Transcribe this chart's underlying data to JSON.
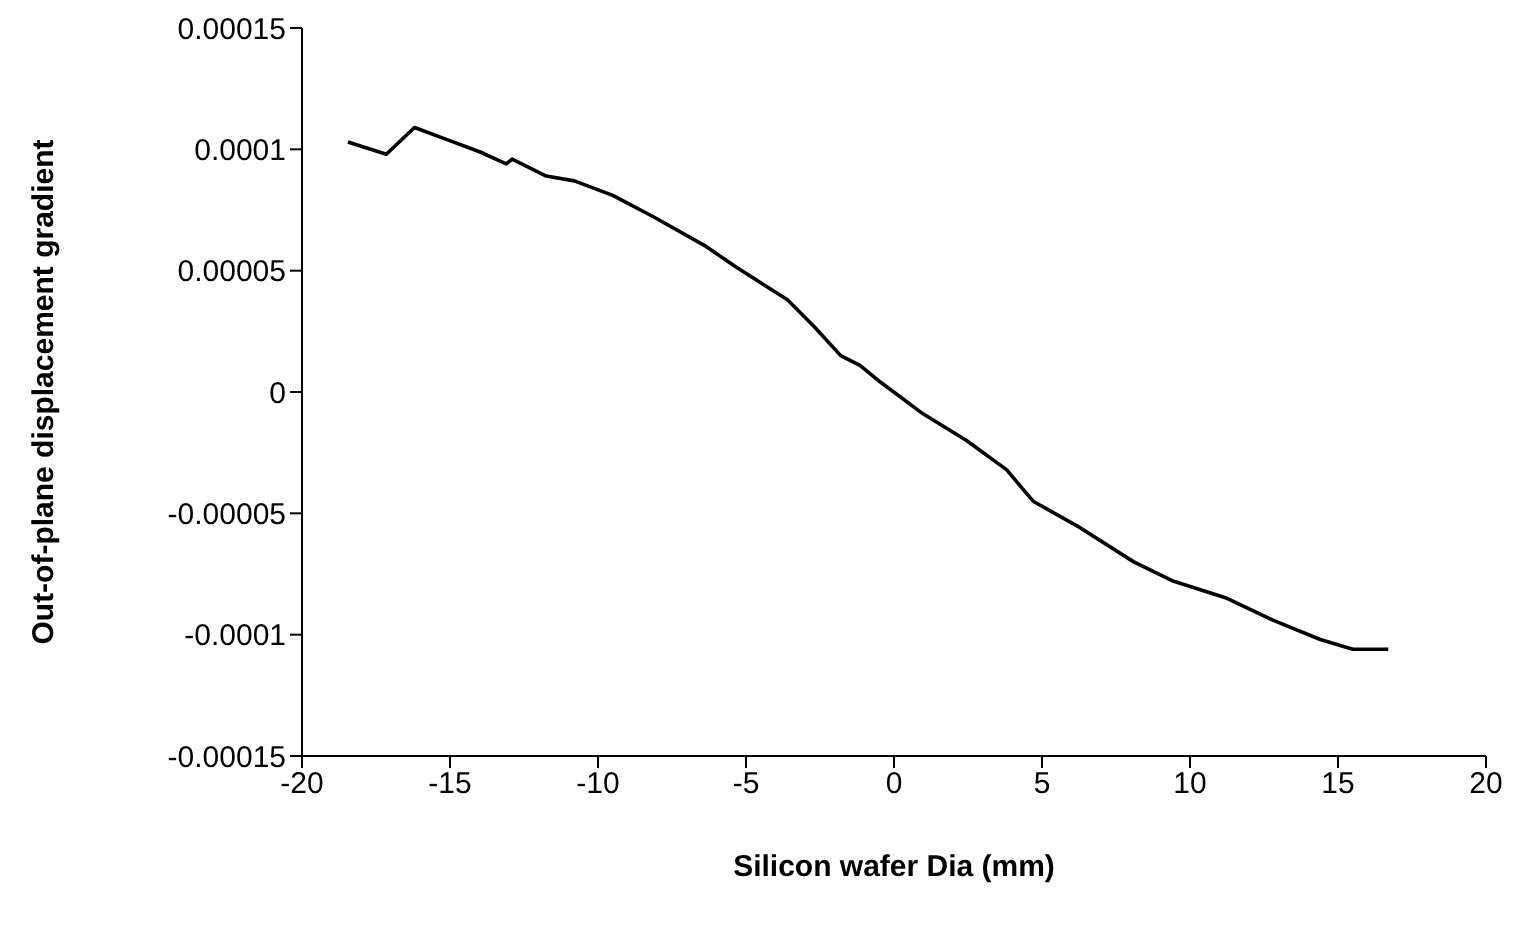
{
  "chart_data": {
    "type": "line",
    "xlabel": "Silicon wafer Dia (mm)",
    "ylabel": "Out-of-plane displacement gradient",
    "x": [
      -18.45,
      -17.15,
      -16.2,
      -15.1,
      -14,
      -13.1,
      -12.9,
      -11.75,
      -10.8,
      -9.5,
      -8.1,
      -6.35,
      -5.4,
      -3.6,
      -2.7,
      -1.8,
      -1.15,
      -0.45,
      0.98,
      2.45,
      3.8,
      4.7,
      6.3,
      8.1,
      9.45,
      11.25,
      12.8,
      14.4,
      15.5,
      16.7
    ],
    "series": [
      {
        "color": "#000000",
        "values": [
          0.000103,
          9.8e-05,
          0.000109,
          0.000104,
          9.9e-05,
          9.4e-05,
          9.6e-05,
          8.9e-05,
          8.7e-05,
          8.1e-05,
          7.2e-05,
          6e-05,
          5.2e-05,
          3.8e-05,
          2.7e-05,
          1.5e-05,
          1.1e-05,
          4e-06,
          -9e-06,
          -2e-05,
          -3.2e-05,
          -4.5e-05,
          -5.6e-05,
          -7e-05,
          -7.8e-05,
          -8.5e-05,
          -9.4e-05,
          -0.000102,
          -0.000106,
          -0.000106
        ]
      }
    ],
    "xlim": [
      -20,
      20
    ],
    "xticks": [
      -20,
      -15,
      -10,
      -5,
      0,
      5,
      10,
      15,
      20
    ],
    "ylim": [
      -0.00015,
      0.00015
    ],
    "yticks": [
      -0.00015,
      -0.0001,
      {
        "value": -5e-05,
        "label": "-0.00005"
      },
      0,
      {
        "value": 5e-05,
        "label": "0.00005"
      },
      0.0001,
      0.00015
    ],
    "grid": false,
    "legend": false,
    "marker": "none",
    "line_style": "solid"
  }
}
